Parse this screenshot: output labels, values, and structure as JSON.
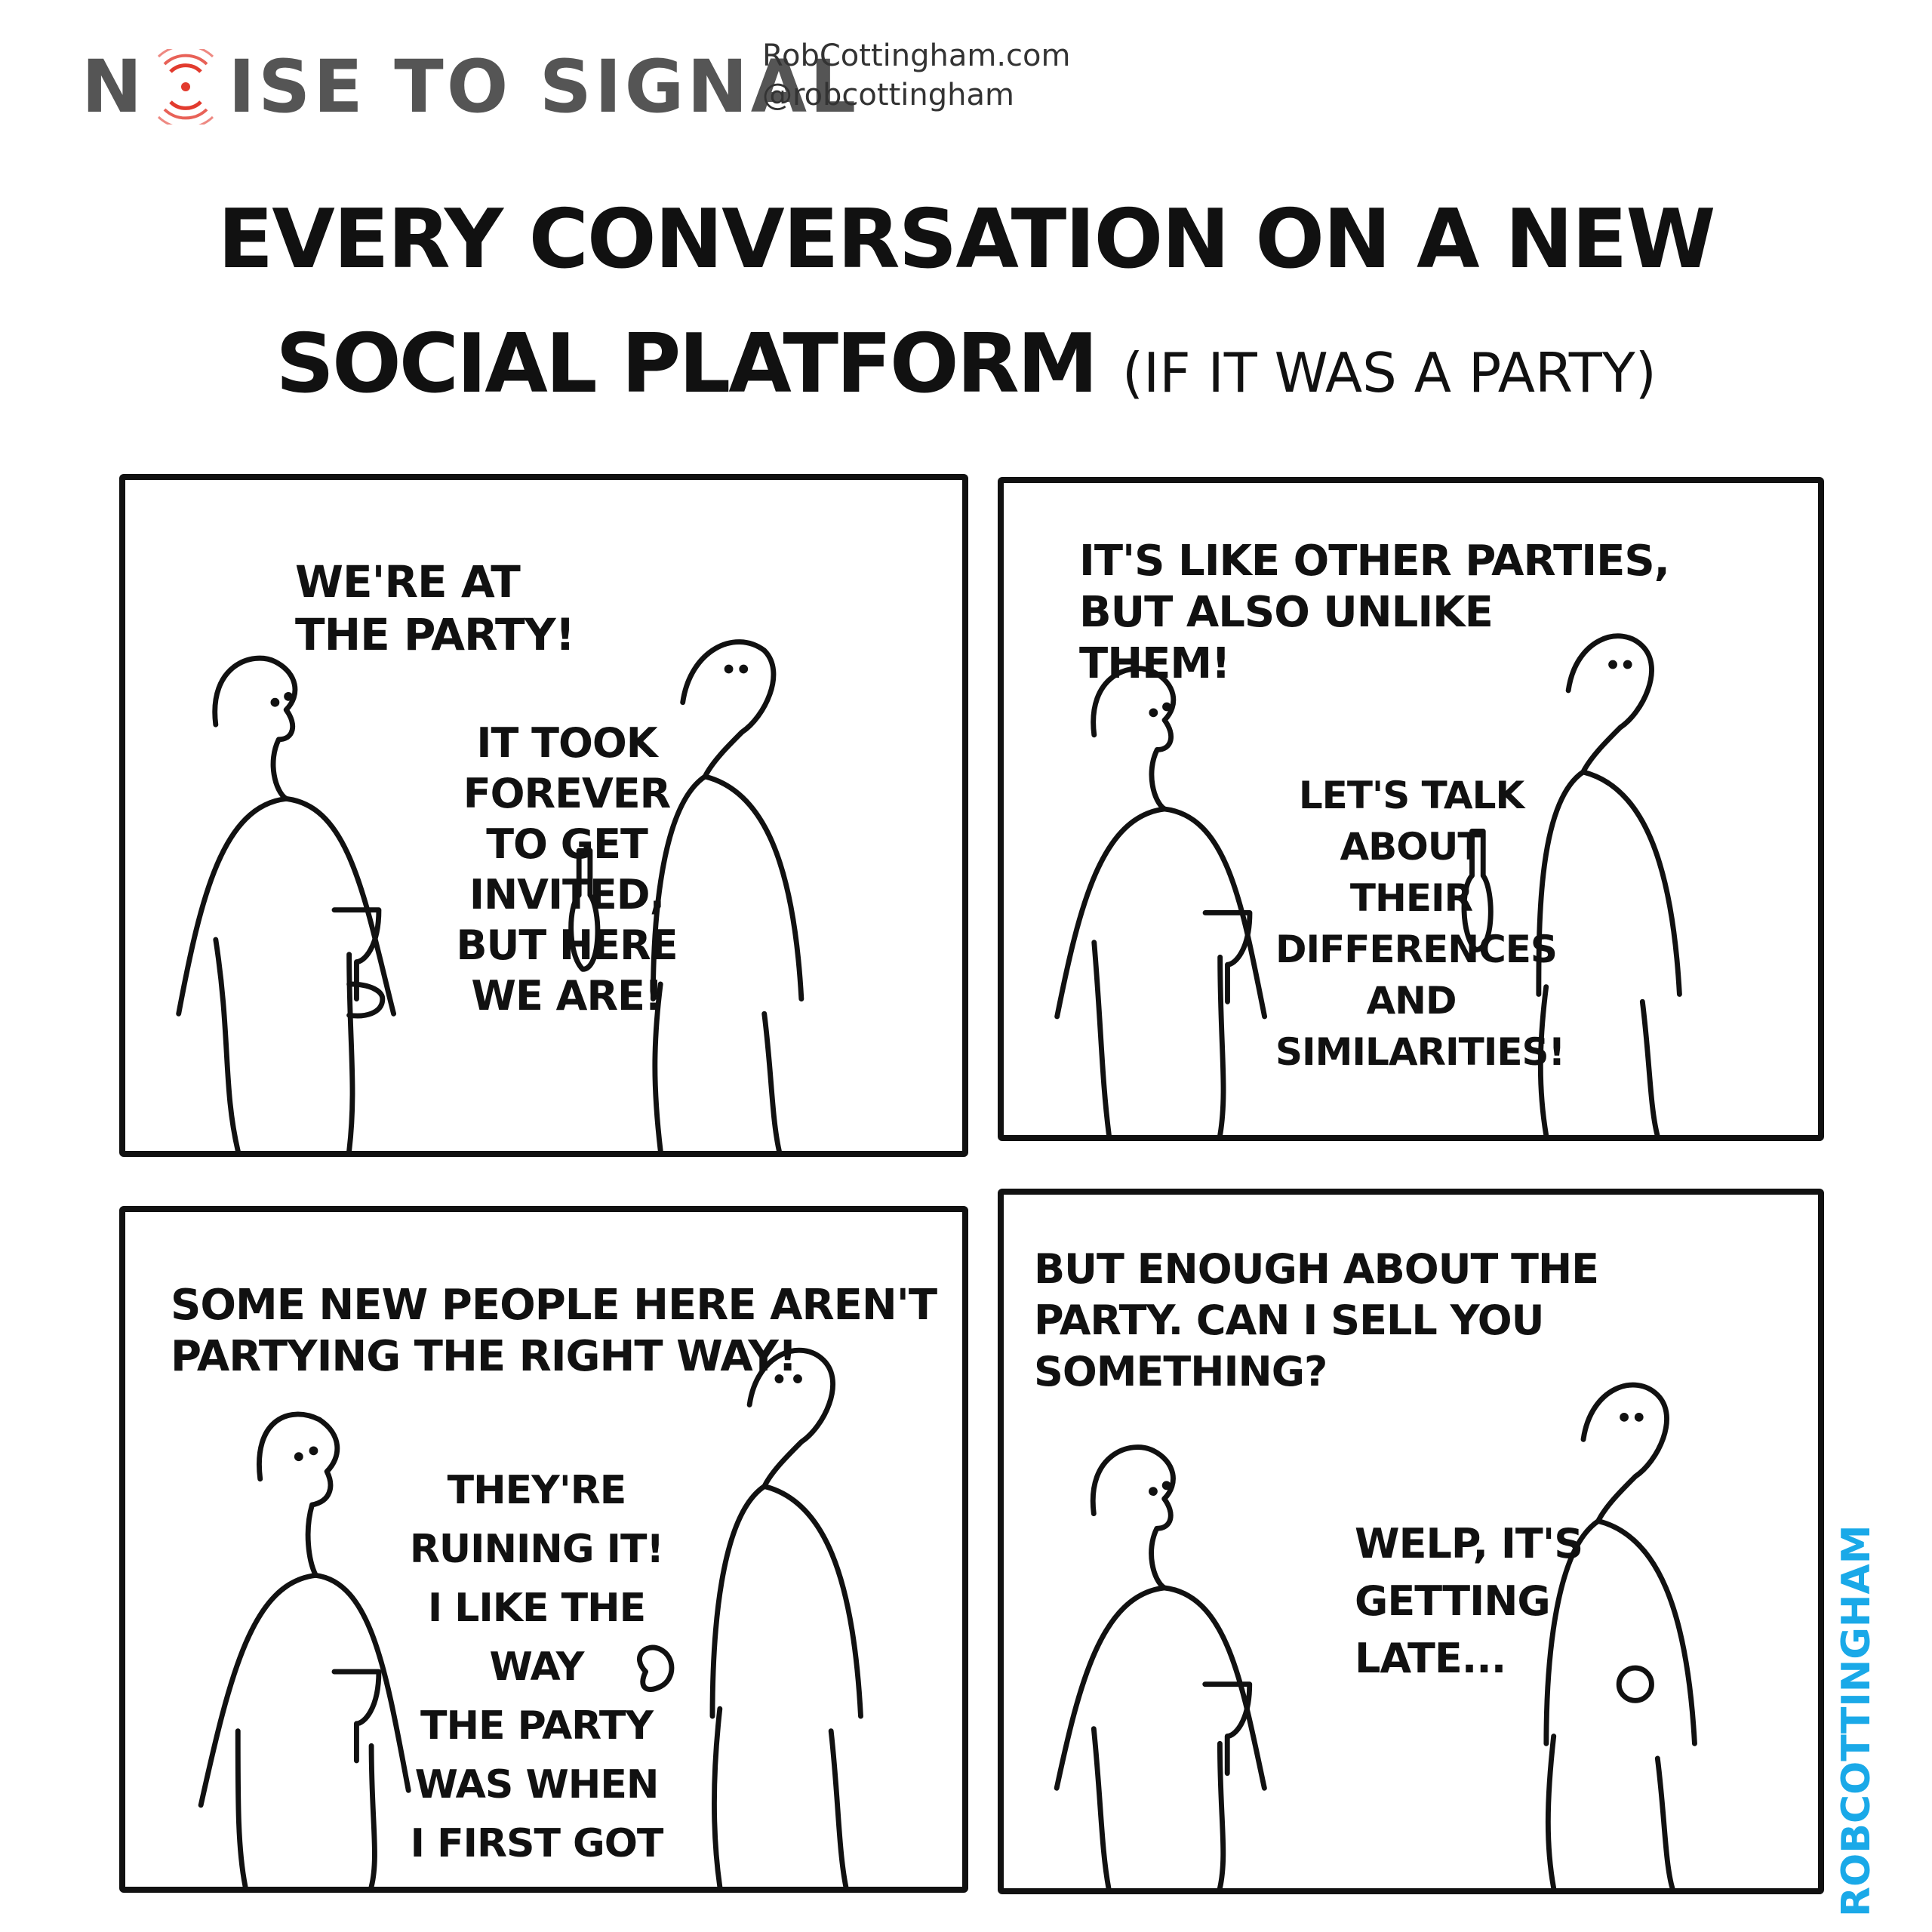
{
  "header": {
    "brand_pre": "N",
    "brand_post": "ISE TO SIGNAL",
    "site": "RobCottingham.com",
    "handle": "@robcottingham",
    "accent_color": "#e23b2e"
  },
  "title": {
    "line1": "EVERY CONVERSATION ON A NEW",
    "line2": "SOCIAL PLATFORM",
    "line2_sub": "(IF IT WAS A PARTY)"
  },
  "panels": [
    {
      "left_speech": "WE'RE AT\nTHE PARTY!",
      "right_speech": "IT TOOK\nFOREVER\nTO GET\nINVITED,\nBUT HERE\nWE ARE!"
    },
    {
      "left_speech": "IT'S LIKE OTHER PARTIES,\nBUT ALSO UNLIKE\nTHEM!",
      "right_speech": "LET'S TALK\nABOUT THEIR\nDIFFERENCES\nAND\nSIMILARITIES!"
    },
    {
      "left_speech": "SOME NEW PEOPLE HERE AREN'T\nPARTYING THE RIGHT WAY!",
      "right_speech": "THEY'RE\nRUINING IT!\nI LIKE THE WAY\nTHE PARTY\nWAS WHEN\nI FIRST GOT\nHERE!"
    },
    {
      "left_speech": "BUT ENOUGH ABOUT THE\nPARTY. CAN I SELL YOU\nSOMETHING?",
      "right_speech": "WELP, IT'S\nGETTING\nLATE..."
    }
  ],
  "signature": "ROBCOTTINGHAM",
  "signature_color": "#1aa9e8"
}
